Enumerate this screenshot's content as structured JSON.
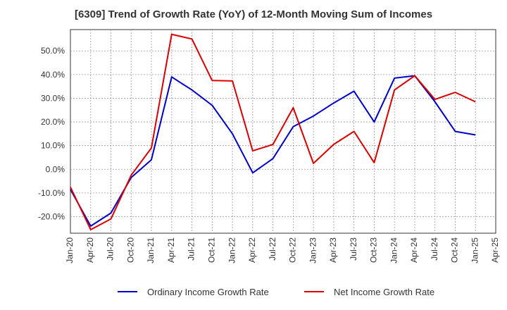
{
  "chart_data": {
    "type": "line",
    "title": "[6309]  Trend of Growth Rate (YoY) of 12-Month Moving Sum of Incomes",
    "categories": [
      "Jan-20",
      "Apr-20",
      "Jul-20",
      "Oct-20",
      "Jan-21",
      "Apr-21",
      "Jul-21",
      "Oct-21",
      "Jan-22",
      "Apr-22",
      "Jul-22",
      "Oct-22",
      "Jan-23",
      "Apr-23",
      "Jul-23",
      "Oct-23",
      "Jan-24",
      "Apr-24",
      "Jul-24",
      "Oct-24",
      "Jan-25",
      "Apr-25"
    ],
    "ylim": [
      -27,
      59
    ],
    "yticks": [
      -20,
      -10,
      0,
      10,
      20,
      30,
      40,
      50
    ],
    "ytick_labels": [
      "-20.0%",
      "-10.0%",
      "0.0%",
      "10.0%",
      "20.0%",
      "30.0%",
      "40.0%",
      "50.0%"
    ],
    "grid": true,
    "legend_position": "bottom",
    "series": [
      {
        "name": "Ordinary Income Growth Rate",
        "color": "#0000cc",
        "values": [
          -8.5,
          -24.0,
          -18.5,
          -3.5,
          4.0,
          39.0,
          33.5,
          27.0,
          15.0,
          -1.5,
          4.5,
          18.0,
          22.5,
          28.0,
          33.0,
          20.0,
          38.5,
          39.5,
          28.5,
          16.0,
          14.5,
          null
        ]
      },
      {
        "name": "Net Income Growth Rate",
        "color": "#dd0000",
        "values": [
          -7.5,
          -25.5,
          -21.0,
          -2.5,
          9.0,
          57.0,
          55.0,
          37.5,
          37.3,
          7.8,
          10.5,
          26.0,
          2.5,
          10.5,
          16.0,
          2.8,
          33.5,
          39.5,
          29.5,
          32.5,
          28.5,
          null
        ]
      }
    ]
  }
}
